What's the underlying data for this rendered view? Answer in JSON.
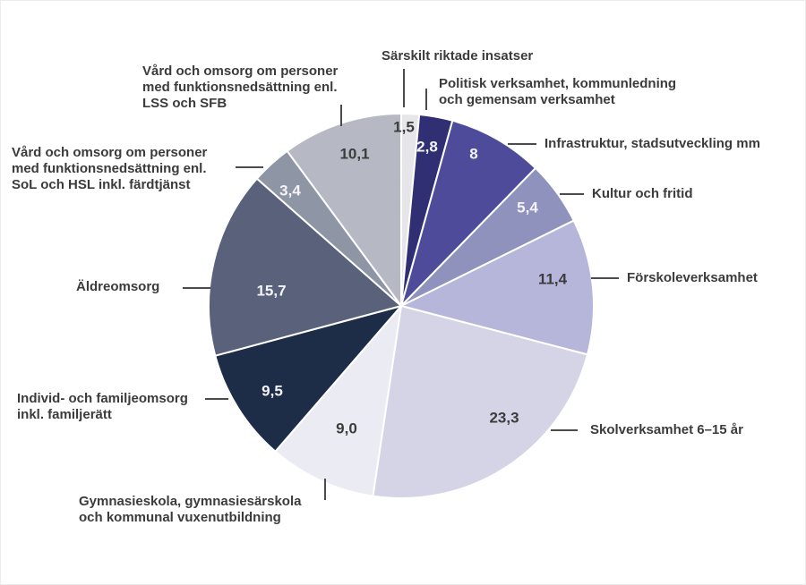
{
  "chart_data": {
    "type": "pie",
    "title": "",
    "unit": "percent",
    "total": 100.1,
    "start_angle_deg": 0,
    "direction": "clockwise",
    "legend_position": "none",
    "label_style": "callouts-with-leader-lines",
    "colors": {
      "background": "#ffffff",
      "label_text": "#3b3b3b",
      "leader_line": "#4b4b4b",
      "slice_separator": "#ffffff"
    },
    "slices": [
      {
        "label": "Särskilt riktade insatser",
        "label_lines": [
          "Särskilt riktade insatser"
        ],
        "value": 1.5,
        "value_label": "1,5",
        "color": "#e6e6ea",
        "value_text_color": "#3c3c3c"
      },
      {
        "label": "Politisk verksamhet, kommunledning och gemensam verksamhet",
        "label_lines": [
          "Politisk verksamhet, kommunledning",
          "och gemensam verksamhet"
        ],
        "value": 2.8,
        "value_label": "2,8",
        "color": "#302f74",
        "value_text_color": "#f4f4f8"
      },
      {
        "label": "Infrastruktur, stadsutveckling mm",
        "label_lines": [
          "Infrastruktur, stadsutveckling mm"
        ],
        "value": 8,
        "value_label": "8",
        "color": "#4e4c9a",
        "value_text_color": "#f4f4f8"
      },
      {
        "label": "Kultur och fritid",
        "label_lines": [
          "Kultur och fritid"
        ],
        "value": 5.4,
        "value_label": "5,4",
        "color": "#9092be",
        "value_text_color": "#f4f4f8"
      },
      {
        "label": "Förskoleverksamhet",
        "label_lines": [
          "Förskoleverksamhet"
        ],
        "value": 11.4,
        "value_label": "11,4",
        "color": "#b6b5da",
        "value_text_color": "#3c3c3c"
      },
      {
        "label": "Skolverksamhet 6–15 år",
        "label_lines": [
          "Skolverksamhet 6–15 år"
        ],
        "value": 23.3,
        "value_label": "23,3",
        "color": "#d5d4e7",
        "value_text_color": "#3c3c3c"
      },
      {
        "label": "Gymnasieskola, gymnasiesärskola och kommunal vuxenutbildning",
        "label_lines": [
          "Gymnasieskola, gymnasiesärskola",
          "och kommunal vuxenutbildning"
        ],
        "value": 9.0,
        "value_label": "9,0",
        "color": "#ebebf3",
        "value_text_color": "#3c3c3c"
      },
      {
        "label": "Individ- och familjeomsorg inkl. familjerätt",
        "label_lines": [
          "Individ- och familjeomsorg",
          "inkl. familjerätt"
        ],
        "value": 9.5,
        "value_label": "9,5",
        "color": "#1d2c47",
        "value_text_color": "#f4f4f8"
      },
      {
        "label": "Äldreomsorg",
        "label_lines": [
          "Äldreomsorg"
        ],
        "value": 15.7,
        "value_label": "15,7",
        "color": "#59617b",
        "value_text_color": "#f4f4f8"
      },
      {
        "label": "Vård och omsorg om personer med funktionsnedsättning enl. SoL och HSL inkl. färdtjänst",
        "label_lines": [
          "Vård och omsorg om personer",
          "med funktionsnedsättning enl.",
          "SoL och HSL inkl. färdtjänst"
        ],
        "value": 3.4,
        "value_label": "3,4",
        "color": "#8e95a5",
        "value_text_color": "#f4f4f8"
      },
      {
        "label": "Vård och omsorg om personer med funktionsnedsättning enl. LSS och SFB",
        "label_lines": [
          "Vård och omsorg om personer",
          "med funktionsnedsättning enl.",
          "LSS och SFB"
        ],
        "value": 10.1,
        "value_label": "10,1",
        "color": "#b6b9c3",
        "value_text_color": "#3c3c3c"
      }
    ]
  }
}
